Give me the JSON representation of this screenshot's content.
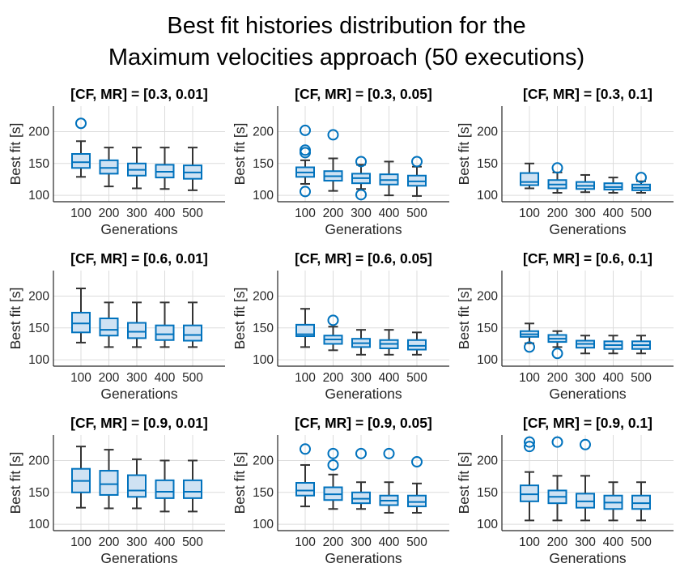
{
  "figure": {
    "title_lines": [
      "Best fit histories distribution for the",
      "Maximum velocities approach (50 executions)"
    ]
  },
  "colors": {
    "box_edge": "#0072BD",
    "box_fill": "#cfe2f3",
    "whisker": "#333333",
    "grid": "#dcdcdc",
    "axis": "#262626"
  },
  "chart_data": [
    {
      "type": "box",
      "title": "[CF, MR] = [0.3, 0.01]",
      "xlabel": "Generations",
      "ylabel": "Best fit [s]",
      "categories": [
        "100",
        "200",
        "300",
        "400",
        "500"
      ],
      "ylim": [
        90,
        240
      ],
      "yticks": [
        100,
        150,
        200
      ],
      "grid": true,
      "boxes": [
        {
          "min": 129,
          "q1": 143,
          "median": 152,
          "q3": 165,
          "max": 185,
          "outliers": [
            213
          ]
        },
        {
          "min": 114,
          "q1": 134,
          "median": 143,
          "q3": 155,
          "max": 175,
          "outliers": []
        },
        {
          "min": 111,
          "q1": 131,
          "median": 140,
          "q3": 150,
          "max": 175,
          "outliers": []
        },
        {
          "min": 110,
          "q1": 128,
          "median": 137,
          "q3": 148,
          "max": 175,
          "outliers": []
        },
        {
          "min": 108,
          "q1": 126,
          "median": 136,
          "q3": 147,
          "max": 175,
          "outliers": []
        }
      ]
    },
    {
      "type": "box",
      "title": "[CF, MR] = [0.3, 0.05]",
      "xlabel": "Generations",
      "ylabel": "Best fit [s]",
      "categories": [
        "100",
        "200",
        "300",
        "400",
        "500"
      ],
      "ylim": [
        90,
        240
      ],
      "yticks": [
        100,
        150,
        200
      ],
      "grid": true,
      "boxes": [
        {
          "min": 118,
          "q1": 129,
          "median": 136,
          "q3": 144,
          "max": 155,
          "outliers": [
            202,
            171,
            167,
            106
          ]
        },
        {
          "min": 107,
          "q1": 123,
          "median": 130,
          "q3": 138,
          "max": 158,
          "outliers": [
            195
          ]
        },
        {
          "min": 110,
          "q1": 119,
          "median": 127,
          "q3": 134,
          "max": 148,
          "outliers": [
            153,
            101
          ]
        },
        {
          "min": 100,
          "q1": 117,
          "median": 124,
          "q3": 133,
          "max": 153,
          "outliers": []
        },
        {
          "min": 99,
          "q1": 115,
          "median": 122,
          "q3": 131,
          "max": 145,
          "outliers": [
            153
          ]
        }
      ]
    },
    {
      "type": "box",
      "title": "[CF, MR] = [0.3, 0.1]",
      "xlabel": "Generations",
      "ylabel": "Best fit [s]",
      "categories": [
        "100",
        "200",
        "300",
        "400",
        "500"
      ],
      "ylim": [
        90,
        240
      ],
      "yticks": [
        100,
        150,
        200
      ],
      "grid": true,
      "boxes": [
        {
          "min": 111,
          "q1": 116,
          "median": 121,
          "q3": 135,
          "max": 150,
          "outliers": []
        },
        {
          "min": 104,
          "q1": 111,
          "median": 117,
          "q3": 124,
          "max": 136,
          "outliers": [
            143
          ]
        },
        {
          "min": 105,
          "q1": 110,
          "median": 115,
          "q3": 121,
          "max": 132,
          "outliers": []
        },
        {
          "min": 104,
          "q1": 109,
          "median": 113,
          "q3": 119,
          "max": 128,
          "outliers": []
        },
        {
          "min": 104,
          "q1": 108,
          "median": 112,
          "q3": 117,
          "max": 122,
          "outliers": [
            128
          ]
        }
      ]
    },
    {
      "type": "box",
      "title": "[CF, MR] = [0.6, 0.01]",
      "xlabel": "Generations",
      "ylabel": "Best fit [s]",
      "categories": [
        "100",
        "200",
        "300",
        "400",
        "500"
      ],
      "ylim": [
        90,
        240
      ],
      "yticks": [
        100,
        150,
        200
      ],
      "grid": true,
      "boxes": [
        {
          "min": 127,
          "q1": 143,
          "median": 157,
          "q3": 174,
          "max": 212,
          "outliers": []
        },
        {
          "min": 120,
          "q1": 138,
          "median": 147,
          "q3": 165,
          "max": 190,
          "outliers": []
        },
        {
          "min": 120,
          "q1": 134,
          "median": 144,
          "q3": 158,
          "max": 190,
          "outliers": []
        },
        {
          "min": 120,
          "q1": 131,
          "median": 140,
          "q3": 154,
          "max": 190,
          "outliers": []
        },
        {
          "min": 120,
          "q1": 130,
          "median": 139,
          "q3": 154,
          "max": 190,
          "outliers": []
        }
      ]
    },
    {
      "type": "box",
      "title": "[CF, MR] = [0.6, 0.05]",
      "xlabel": "Generations",
      "ylabel": "Best fit [s]",
      "categories": [
        "100",
        "200",
        "300",
        "400",
        "500"
      ],
      "ylim": [
        90,
        240
      ],
      "yticks": [
        100,
        150,
        200
      ],
      "grid": true,
      "boxes": [
        {
          "min": 120,
          "q1": 137,
          "median": 140,
          "q3": 155,
          "max": 180,
          "outliers": []
        },
        {
          "min": 115,
          "q1": 125,
          "median": 132,
          "q3": 138,
          "max": 152,
          "outliers": [
            162
          ]
        },
        {
          "min": 108,
          "q1": 120,
          "median": 126,
          "q3": 133,
          "max": 147,
          "outliers": []
        },
        {
          "min": 108,
          "q1": 118,
          "median": 125,
          "q3": 131,
          "max": 147,
          "outliers": []
        },
        {
          "min": 108,
          "q1": 116,
          "median": 122,
          "q3": 131,
          "max": 143,
          "outliers": []
        }
      ]
    },
    {
      "type": "box",
      "title": "[CF, MR] = [0.6, 0.1]",
      "xlabel": "Generations",
      "ylabel": "Best fit [s]",
      "categories": [
        "100",
        "200",
        "300",
        "400",
        "500"
      ],
      "ylim": [
        90,
        240
      ],
      "yticks": [
        100,
        150,
        200
      ],
      "grid": true,
      "boxes": [
        {
          "min": 126,
          "q1": 136,
          "median": 140,
          "q3": 145,
          "max": 157,
          "outliers": [
            120
          ]
        },
        {
          "min": 120,
          "q1": 128,
          "median": 133,
          "q3": 139,
          "max": 145,
          "outliers": [
            110
          ]
        },
        {
          "min": 110,
          "q1": 119,
          "median": 125,
          "q3": 130,
          "max": 138,
          "outliers": []
        },
        {
          "min": 110,
          "q1": 117,
          "median": 123,
          "q3": 129,
          "max": 138,
          "outliers": []
        },
        {
          "min": 110,
          "q1": 117,
          "median": 123,
          "q3": 129,
          "max": 138,
          "outliers": []
        }
      ]
    },
    {
      "type": "box",
      "title": "[CF, MR] = [0.9, 0.01]",
      "xlabel": "Generations",
      "ylabel": "Best fit [s]",
      "categories": [
        "100",
        "200",
        "300",
        "400",
        "500"
      ],
      "ylim": [
        90,
        240
      ],
      "yticks": [
        100,
        150,
        200
      ],
      "grid": true,
      "boxes": [
        {
          "min": 126,
          "q1": 150,
          "median": 168,
          "q3": 187,
          "max": 222,
          "outliers": []
        },
        {
          "min": 125,
          "q1": 146,
          "median": 163,
          "q3": 184,
          "max": 217,
          "outliers": []
        },
        {
          "min": 125,
          "q1": 143,
          "median": 153,
          "q3": 177,
          "max": 202,
          "outliers": []
        },
        {
          "min": 120,
          "q1": 141,
          "median": 151,
          "q3": 169,
          "max": 200,
          "outliers": []
        },
        {
          "min": 120,
          "q1": 141,
          "median": 151,
          "q3": 169,
          "max": 200,
          "outliers": []
        }
      ]
    },
    {
      "type": "box",
      "title": "[CF, MR] = [0.9, 0.05]",
      "xlabel": "Generations",
      "ylabel": "Best fit [s]",
      "categories": [
        "100",
        "200",
        "300",
        "400",
        "500"
      ],
      "ylim": [
        90,
        240
      ],
      "yticks": [
        100,
        150,
        200
      ],
      "grid": true,
      "boxes": [
        {
          "min": 128,
          "q1": 145,
          "median": 153,
          "q3": 165,
          "max": 193,
          "outliers": [
            218
          ]
        },
        {
          "min": 124,
          "q1": 138,
          "median": 147,
          "q3": 158,
          "max": 178,
          "outliers": [
            211,
            193
          ]
        },
        {
          "min": 124,
          "q1": 133,
          "median": 140,
          "q3": 150,
          "max": 166,
          "outliers": [
            211
          ]
        },
        {
          "min": 118,
          "q1": 130,
          "median": 137,
          "q3": 145,
          "max": 166,
          "outliers": [
            211
          ]
        },
        {
          "min": 118,
          "q1": 128,
          "median": 135,
          "q3": 145,
          "max": 164,
          "outliers": [
            198
          ]
        }
      ]
    },
    {
      "type": "box",
      "title": "[CF, MR] = [0.9, 0.1]",
      "xlabel": "Generations",
      "ylabel": "Best fit [s]",
      "categories": [
        "100",
        "200",
        "300",
        "400",
        "500"
      ],
      "ylim": [
        90,
        240
      ],
      "yticks": [
        100,
        150,
        200
      ],
      "grid": true,
      "boxes": [
        {
          "min": 106,
          "q1": 136,
          "median": 147,
          "q3": 161,
          "max": 182,
          "outliers": [
            229,
            222
          ]
        },
        {
          "min": 106,
          "q1": 133,
          "median": 143,
          "q3": 153,
          "max": 176,
          "outliers": [
            229
          ]
        },
        {
          "min": 106,
          "q1": 126,
          "median": 136,
          "q3": 148,
          "max": 176,
          "outliers": [
            225
          ]
        },
        {
          "min": 106,
          "q1": 124,
          "median": 134,
          "q3": 145,
          "max": 166,
          "outliers": []
        },
        {
          "min": 106,
          "q1": 124,
          "median": 133,
          "q3": 145,
          "max": 166,
          "outliers": []
        }
      ]
    }
  ]
}
